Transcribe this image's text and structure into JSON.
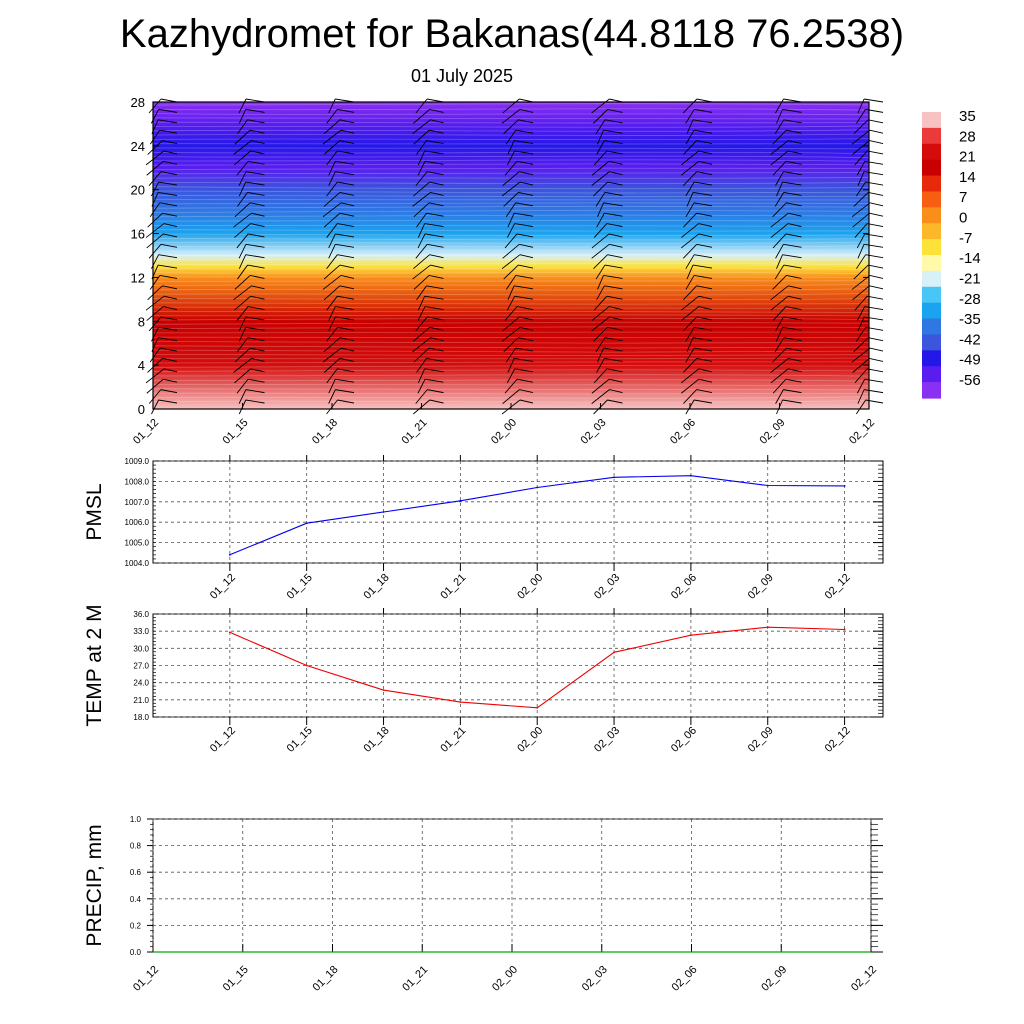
{
  "header": {
    "title": "Kazhydromet for Bakanas(44.8118 76.2538)",
    "subtitle": "01 July 2025"
  },
  "chart_data": [
    {
      "type": "heatmap",
      "name": "temperature-height-cross-section",
      "ylim": [
        0,
        28
      ],
      "y_ticks": [
        "0",
        "4",
        "8",
        "12",
        "16",
        "20",
        "24",
        "28"
      ],
      "x_ticks": [
        "01_12",
        "01_15",
        "01_18",
        "01_21",
        "02_00",
        "02_03",
        "02_06",
        "02_09",
        "02_12"
      ],
      "colorbar_labels": [
        "35",
        "28",
        "21",
        "14",
        "7",
        "0",
        "-7",
        "-14",
        "-21",
        "-28",
        "-35",
        "-42",
        "-49",
        "-56"
      ],
      "colorbar_colors": [
        "#f7c2c2",
        "#ea3a3a",
        "#d40c0c",
        "#c80000",
        "#e62a0a",
        "#f65e12",
        "#fa8e1a",
        "#fcb82a",
        "#fde23a",
        "#fff9a8",
        "#d8f0f8",
        "#48c6f6",
        "#1aa3ee",
        "#2f78e4",
        "#3b55dc",
        "#2418e8",
        "#5a1df0",
        "#8a30f2"
      ],
      "profile": [
        {
          "level": 0,
          "value": 33
        },
        {
          "level": 4,
          "value": 25
        },
        {
          "level": 8,
          "value": 15
        },
        {
          "level": 12,
          "value": 1
        },
        {
          "level": 13,
          "value": -12
        },
        {
          "level": 14,
          "value": -20
        },
        {
          "level": 16,
          "value": -32
        },
        {
          "level": 18,
          "value": -40
        },
        {
          "level": 20,
          "value": -46
        },
        {
          "level": 22,
          "value": -58
        },
        {
          "level": 24,
          "value": -52
        },
        {
          "level": 26,
          "value": -60
        },
        {
          "level": 28,
          "value": -62
        }
      ],
      "wind_barbs": true
    },
    {
      "type": "line",
      "name": "pmsl",
      "ylabel": "PMSL",
      "ylim": [
        1004.0,
        1009.0
      ],
      "y_ticks": [
        "1004.0",
        "1005.0",
        "1006.0",
        "1007.0",
        "1008.0",
        "1009.0"
      ],
      "categories": [
        "01_12",
        "01_15",
        "01_18",
        "01_21",
        "02_00",
        "02_03",
        "02_06",
        "02_09",
        "02_12"
      ],
      "values": [
        1004.4,
        1005.95,
        1006.5,
        1007.05,
        1007.7,
        1008.2,
        1008.28,
        1007.8,
        1007.78
      ],
      "color": "#0000ee",
      "grid": true
    },
    {
      "type": "line",
      "name": "temp-2m",
      "ylabel": "TEMP at 2 M",
      "ylim": [
        18.0,
        36.0
      ],
      "y_ticks": [
        "18.0",
        "21.0",
        "24.0",
        "27.0",
        "30.0",
        "33.0",
        "36.0"
      ],
      "categories": [
        "01_12",
        "01_15",
        "01_18",
        "01_21",
        "02_00",
        "02_03",
        "02_06",
        "02_09",
        "02_12"
      ],
      "values": [
        32.8,
        27.0,
        22.7,
        20.6,
        19.6,
        29.3,
        32.3,
        33.7,
        33.3
      ],
      "color": "#ee0000",
      "grid": true
    },
    {
      "type": "line",
      "name": "precip",
      "ylabel": "PRECIP, mm",
      "ylim": [
        0.0,
        1.0
      ],
      "y_ticks": [
        "0.0",
        "0.2",
        "0.4",
        "0.6",
        "0.8",
        "1.0"
      ],
      "categories": [
        "01_12",
        "01_15",
        "01_18",
        "01_21",
        "02_00",
        "02_03",
        "02_06",
        "02_09",
        "02_12"
      ],
      "values": [
        0,
        0,
        0,
        0,
        0,
        0,
        0,
        0,
        0
      ],
      "color": "#00aa00",
      "grid": true
    }
  ]
}
